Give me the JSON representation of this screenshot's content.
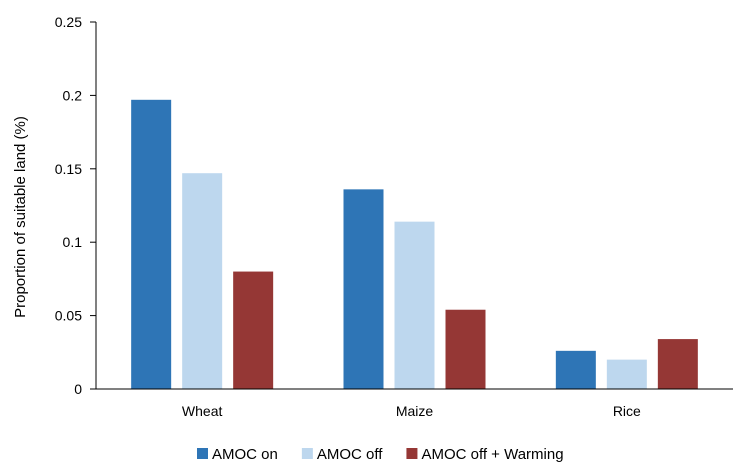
{
  "chart_data": {
    "type": "bar",
    "title": "",
    "xlabel": "",
    "ylabel": "Proportion of suitable land (%)",
    "categories": [
      "Wheat",
      "Maize",
      "Rice"
    ],
    "ylim": [
      0,
      0.25
    ],
    "yticks": [
      0,
      0.05,
      0.1,
      0.15,
      0.2,
      0.25
    ],
    "ytick_labels": [
      "0",
      "0.05",
      "0.1",
      "0.15",
      "0.2",
      "0.25"
    ],
    "grid": false,
    "legend_position": "bottom",
    "series": [
      {
        "name": "AMOC on",
        "color": "#2e75b6",
        "values": [
          0.197,
          0.136,
          0.026
        ]
      },
      {
        "name": "AMOC off",
        "color": "#bdd7ee",
        "values": [
          0.147,
          0.114,
          0.02
        ]
      },
      {
        "name": "AMOC off + Warming",
        "color": "#953735",
        "values": [
          0.08,
          0.054,
          0.034
        ]
      }
    ]
  }
}
